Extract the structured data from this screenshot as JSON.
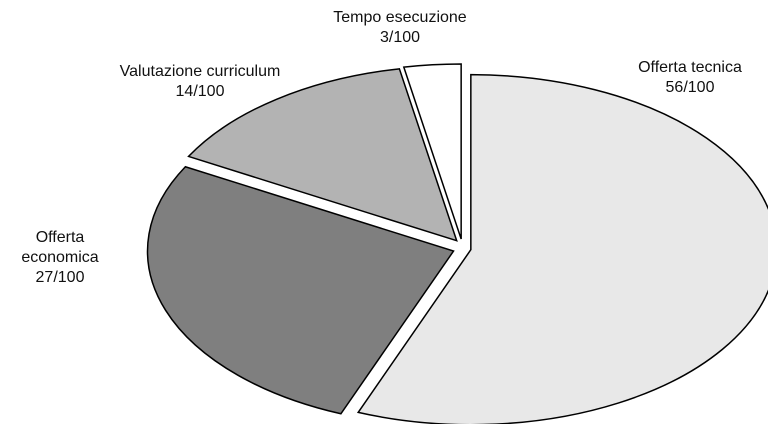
{
  "chart_data": {
    "type": "pie",
    "categories": [
      "Offerta tecnica",
      "Offerta economica",
      "Valutazione curriculum",
      "Tempo esecuzione"
    ],
    "values": [
      56,
      27,
      14,
      3
    ],
    "value_labels": [
      "56/100",
      "27/100",
      "14/100",
      "3/100"
    ],
    "colors": [
      "#e8e8e8",
      "#7f7f7f",
      "#b3b3b3",
      "#ffffff"
    ]
  }
}
